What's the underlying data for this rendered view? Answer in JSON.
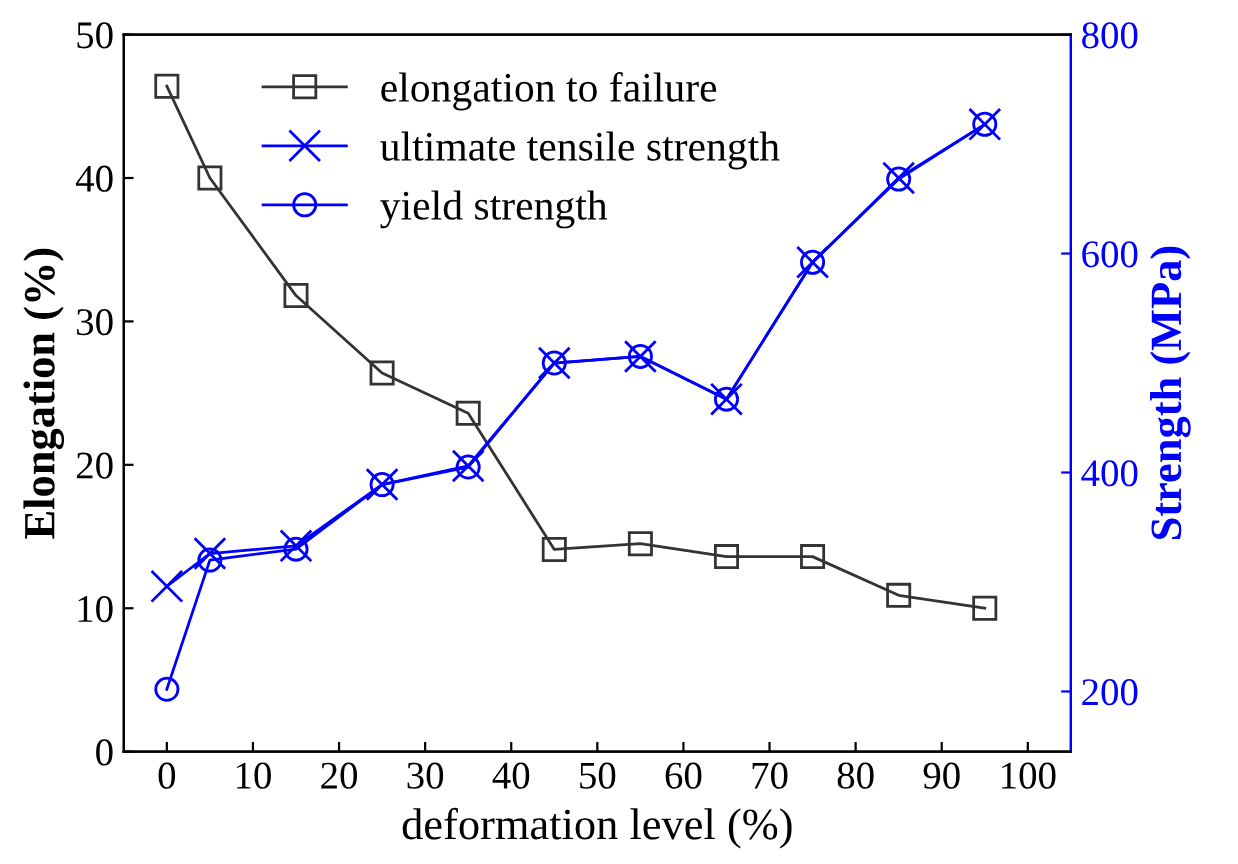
{
  "chart_data": {
    "type": "line",
    "xlabel": "deformation level (%)",
    "ylabel": "Elongation (%)",
    "y2label": "Strength (MPa)",
    "x": [
      0,
      5,
      15,
      25,
      35,
      45,
      55,
      65,
      75,
      85,
      95
    ],
    "xlim": [
      -5,
      105
    ],
    "xticks": [
      0,
      10,
      20,
      30,
      40,
      50,
      60,
      70,
      80,
      90,
      100
    ],
    "ylim": [
      0,
      50
    ],
    "yticks": [
      0,
      10,
      20,
      30,
      40,
      50
    ],
    "y2lim": [
      145,
      800
    ],
    "y2ticks": [
      200,
      400,
      600,
      800
    ],
    "legend": "top",
    "grid": false,
    "series": [
      {
        "name": "elongation to failure",
        "color": "#333333",
        "marker": "square",
        "values": [
          46.4,
          40.0,
          31.8,
          26.4,
          23.6,
          14.1,
          14.5,
          13.6,
          13.6,
          10.9,
          10.0
        ]
      },
      {
        "name": "ultimate tensile strength",
        "color": "#0000ff",
        "marker": "cross",
        "axis": "y2",
        "values": [
          296,
          326,
          333,
          389,
          406,
          500,
          506,
          467,
          592,
          669,
          718
        ]
      },
      {
        "name": "yield strength",
        "color": "#0000ff",
        "marker": "circle",
        "axis": "y2",
        "values": [
          202,
          320,
          330,
          389,
          405,
          500,
          506,
          467,
          592,
          668,
          718
        ]
      }
    ]
  }
}
